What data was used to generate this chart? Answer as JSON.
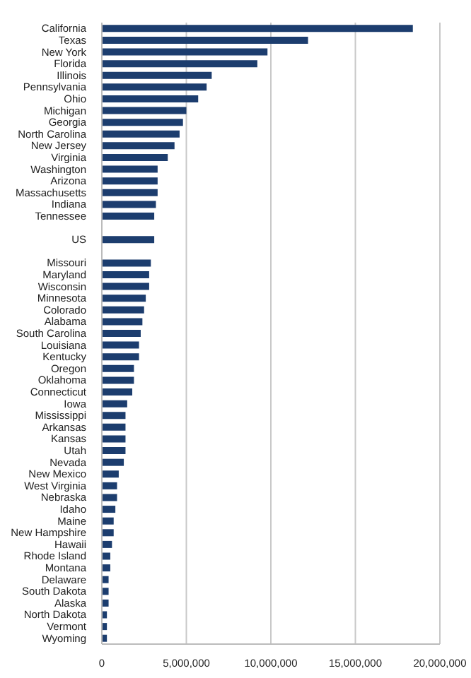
{
  "chart_data": {
    "type": "bar",
    "orientation": "horizontal",
    "categories": [
      "California",
      "Texas",
      "New York",
      "Florida",
      "Illinois",
      "Pennsylvania",
      "Ohio",
      "Michigan",
      "Georgia",
      "North Carolina",
      "New Jersey",
      "Virginia",
      "Washington",
      "Arizona",
      "Massachusetts",
      "Indiana",
      "Tennessee",
      null,
      "US",
      null,
      "Missouri",
      "Maryland",
      "Wisconsin",
      "Minnesota",
      "Colorado",
      "Alabama",
      "South Carolina",
      "Louisiana",
      "Kentucky",
      "Oregon",
      "Oklahoma",
      "Connecticut",
      "Iowa",
      "Mississippi",
      "Arkansas",
      "Kansas",
      "Utah",
      "Nevada",
      "New Mexico",
      "West Virginia",
      "Nebraska",
      "Idaho",
      "Maine",
      "New Hampshire",
      "Hawaii",
      "Rhode Island",
      "Montana",
      "Delaware",
      "South Dakota",
      "Alaska",
      "North Dakota",
      "Vermont",
      "Wyoming"
    ],
    "values": [
      18400000,
      12200000,
      9800000,
      9200000,
      6500000,
      6200000,
      5700000,
      5000000,
      4800000,
      4600000,
      4300000,
      3900000,
      3300000,
      3300000,
      3300000,
      3200000,
      3100000,
      null,
      3100000,
      null,
      2900000,
      2800000,
      2800000,
      2600000,
      2500000,
      2400000,
      2300000,
      2200000,
      2200000,
      1900000,
      1900000,
      1800000,
      1500000,
      1400000,
      1400000,
      1400000,
      1400000,
      1300000,
      1000000,
      900000,
      900000,
      800000,
      700000,
      700000,
      600000,
      500000,
      500000,
      400000,
      400000,
      400000,
      300000,
      300000,
      300000
    ],
    "color": "#1c3d6e",
    "xlim": [
      0,
      20000000
    ],
    "xticks": [
      0,
      {
        "value": 5000000,
        "label": "5,000,000"
      },
      {
        "value": 10000000,
        "label": "10,000,000"
      },
      {
        "value": 15000000,
        "label": "15,000,000"
      },
      {
        "value": 20000000,
        "label": "20,000,000"
      }
    ],
    "grid": "x"
  }
}
